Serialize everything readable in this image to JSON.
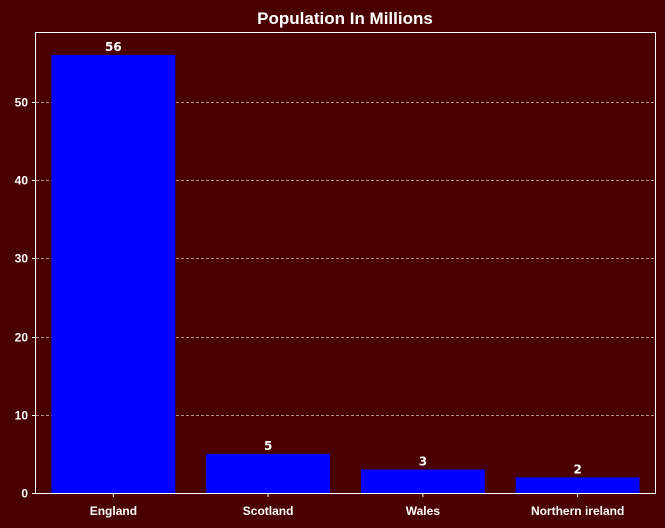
{
  "chart_data": {
    "type": "bar",
    "title": "Population In Millions",
    "xlabel": "",
    "ylabel": "",
    "categories": [
      "England",
      "Scotland",
      "Wales",
      "Northern ireland"
    ],
    "values": [
      56,
      5,
      3,
      2
    ],
    "data_labels": [
      "56",
      "5",
      "3",
      "2"
    ],
    "y_ticks": [
      0,
      10,
      20,
      30,
      40,
      50
    ],
    "ylim": [
      0,
      58.8
    ],
    "grid": "y-dashed",
    "colors": {
      "background": "#4a0000",
      "bar": "#0000ff",
      "text": "#ffffff",
      "grid": "#ffffff"
    }
  }
}
